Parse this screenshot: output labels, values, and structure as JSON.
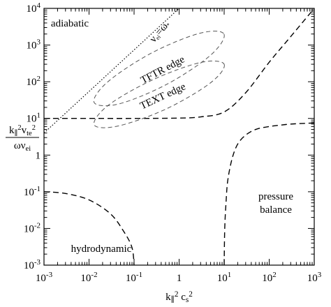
{
  "chart_data": {
    "type": "line",
    "xscale": "log",
    "yscale": "log",
    "xlim": [
      0.001,
      1000
    ],
    "ylim": [
      0.001,
      10000
    ],
    "xticks": [
      {
        "value": 0.001,
        "label": "10",
        "exponent": "-3"
      },
      {
        "value": 0.01,
        "label": "10",
        "exponent": "-2"
      },
      {
        "value": 0.1,
        "label": "10",
        "exponent": "-1"
      },
      1,
      {
        "value": 10,
        "label": "10",
        "exponent": "1"
      },
      {
        "value": 100,
        "label": "10",
        "exponent": "2"
      },
      {
        "value": 1000,
        "label": "10",
        "exponent": "3"
      }
    ],
    "yticks": [
      {
        "value": 0.001,
        "label": "10",
        "exponent": "-3"
      },
      {
        "value": 0.01,
        "label": "10",
        "exponent": "-2"
      },
      {
        "value": 0.1,
        "label": "10",
        "exponent": "-1"
      },
      1,
      {
        "value": 10,
        "label": "10",
        "exponent": "1"
      },
      {
        "value": 100,
        "label": "10",
        "exponent": "2"
      },
      {
        "value": 1000,
        "label": "10",
        "exponent": "3"
      },
      {
        "value": 10000,
        "label": "10",
        "exponent": "4"
      }
    ],
    "xlabel": [
      {
        "t": "k"
      },
      {
        "t": "∥",
        "s": "sub"
      },
      {
        "t": "2",
        "s": "sup"
      },
      {
        "t": " c"
      },
      {
        "t": "s",
        "s": "sub"
      },
      {
        "t": "2",
        "s": "sup"
      }
    ],
    "ylabel": {
      "numerator": [
        {
          "t": "k"
        },
        {
          "t": "∥",
          "s": "sub"
        },
        {
          "t": "2",
          "s": "sup"
        },
        {
          "t": "v"
        },
        {
          "t": "te",
          "s": "sub"
        },
        {
          "t": "2",
          "s": "sup"
        }
      ],
      "denominator": [
        {
          "t": "ων"
        },
        {
          "t": "ei",
          "s": "sub"
        }
      ]
    },
    "annotations": [
      [
        {
          "t": "adiabatic"
        }
      ],
      [
        {
          "t": "TFTR edge"
        }
      ],
      [
        {
          "t": "TEXT edge"
        }
      ],
      [
        {
          "t": "pressure"
        }
      ],
      [
        {
          "t": "balance"
        }
      ],
      [
        {
          "t": "hydrodynamic"
        }
      ],
      [
        {
          "t": "ν"
        },
        {
          "t": "ei",
          "s": "sub"
        },
        {
          "t": "=ω"
        },
        {
          "t": "*",
          "s": "sub"
        }
      ]
    ],
    "series": [
      {
        "x": [
          0.001,
          0.01,
          0.1,
          1,
          3,
          10,
          30,
          100,
          300,
          1000
        ],
        "values": [
          10,
          10,
          10,
          10.2,
          11,
          15,
          50,
          340,
          1700,
          10000
        ],
        "dash": "dashed",
        "color": "#000000"
      },
      {
        "x": [
          10,
          10.3,
          11,
          12,
          15,
          20,
          30,
          50,
          100,
          300,
          1000
        ],
        "values": [
          0.001,
          0.01,
          0.05,
          0.2,
          0.8,
          2,
          3.5,
          5,
          6,
          7,
          7.5
        ],
        "dash": "dashed",
        "color": "#000000"
      },
      {
        "x": [
          0.001,
          0.003,
          0.01,
          0.03,
          0.06,
          0.09,
          0.1
        ],
        "values": [
          0.1,
          0.09,
          0.06,
          0.025,
          0.008,
          0.003,
          0.001
        ],
        "dash": "dashed",
        "color": "#000000"
      },
      {
        "x": [
          0.001,
          1
        ],
        "values": [
          4,
          10000
        ],
        "dash": "dotted",
        "color": "#000000"
      },
      {
        "x": [
          9.9,
          5,
          0.55,
          0.047,
          0.013,
          0.026,
          0.24,
          2.8
        ],
        "values": [
          2000,
          530,
          87,
          25,
          27,
          99,
          600,
          2080
        ],
        "dash": "dashed-thin",
        "color": "#555555",
        "closed": true
      },
      {
        "x": [
          10,
          4.9,
          0.51,
          0.044,
          0.013,
          0.027,
          0.26,
          3
        ],
        "values": [
          300,
          92,
          18,
          6.2,
          6.7,
          23,
          113,
          335
        ],
        "dash": "dashed-thin",
        "color": "#555555",
        "closed": true
      }
    ]
  }
}
